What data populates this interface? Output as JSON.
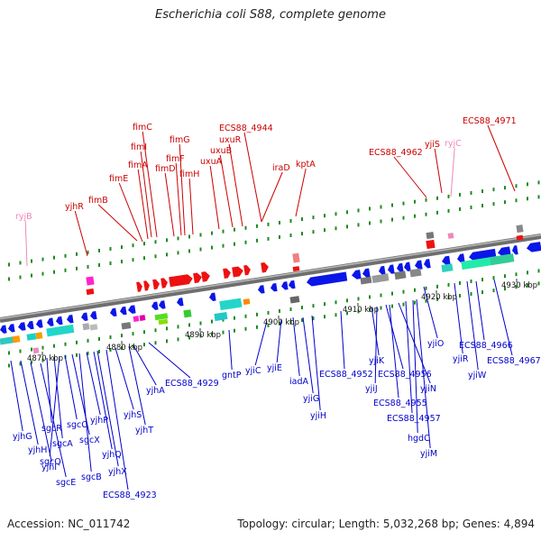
{
  "title": "Escherichia coli S88, complete genome",
  "footer": {
    "accession": "Accession: NC_011742",
    "summary": "Topology: circular; Length: 5,032,268 bp; Genes: 4,894"
  },
  "colors": {
    "forward_label": "#cc0000",
    "reverse_label": "#0000cc",
    "pseudo_label": "#ee88bb",
    "forward_gene": "#ee1111",
    "reverse_gene": "#0b16e8",
    "backbone": "#8c8c8c",
    "tick": "#1f8a1f"
  },
  "scale": {
    "ticks": [
      {
        "label": "4870 kbp"
      },
      {
        "label": "4880 kbp"
      },
      {
        "label": "4890 kbp"
      },
      {
        "label": "4900 kbp"
      },
      {
        "label": "4910 kbp"
      },
      {
        "label": "4920 kbp"
      },
      {
        "label": "4930 kbp"
      }
    ]
  },
  "top_labels": [
    {
      "name": "ryjB",
      "kind": "pseudo"
    },
    {
      "name": "yjhR",
      "kind": "forward"
    },
    {
      "name": "fimB",
      "kind": "forward"
    },
    {
      "name": "fimE",
      "kind": "forward"
    },
    {
      "name": "fimA",
      "kind": "forward"
    },
    {
      "name": "fimI",
      "kind": "forward"
    },
    {
      "name": "fimC",
      "kind": "forward"
    },
    {
      "name": "fimD",
      "kind": "forward"
    },
    {
      "name": "fimF",
      "kind": "forward"
    },
    {
      "name": "fimG",
      "kind": "forward"
    },
    {
      "name": "fimH",
      "kind": "forward"
    },
    {
      "name": "uxuA",
      "kind": "forward"
    },
    {
      "name": "uxuB",
      "kind": "forward"
    },
    {
      "name": "uxuR",
      "kind": "forward"
    },
    {
      "name": "ECS88_4944",
      "kind": "forward"
    },
    {
      "name": "iraD",
      "kind": "forward"
    },
    {
      "name": "kptA",
      "kind": "forward"
    },
    {
      "name": "ECS88_4962",
      "kind": "forward"
    },
    {
      "name": "yjiS",
      "kind": "forward"
    },
    {
      "name": "ryjC",
      "kind": "pseudo"
    },
    {
      "name": "ECS88_4971",
      "kind": "forward"
    }
  ],
  "bottom_labels": [
    {
      "name": "yjhG"
    },
    {
      "name": "yjhH"
    },
    {
      "name": "yjhI"
    },
    {
      "name": "sgcE"
    },
    {
      "name": "sgcR"
    },
    {
      "name": "sgcA"
    },
    {
      "name": "sgcQ"
    },
    {
      "name": "sgcC"
    },
    {
      "name": "sgcX"
    },
    {
      "name": "sgcB"
    },
    {
      "name": "yjhP"
    },
    {
      "name": "yjhQ"
    },
    {
      "name": "yjhX"
    },
    {
      "name": "ECS88_4923"
    },
    {
      "name": "yjhS"
    },
    {
      "name": "yjhT"
    },
    {
      "name": "yjhA"
    },
    {
      "name": "ECS88_4929"
    },
    {
      "name": "gntP"
    },
    {
      "name": "yjiC"
    },
    {
      "name": "yjiE"
    },
    {
      "name": "iadA"
    },
    {
      "name": "yjiG"
    },
    {
      "name": "yjiH"
    },
    {
      "name": "ECS88_4952"
    },
    {
      "name": "yjiK"
    },
    {
      "name": "yjiJ"
    },
    {
      "name": "ECS88_4956"
    },
    {
      "name": "ECS88_4955"
    },
    {
      "name": "yjiN"
    },
    {
      "name": "ECS88_4957"
    },
    {
      "name": "hgdC"
    },
    {
      "name": "yjiM"
    },
    {
      "name": "yjiO"
    },
    {
      "name": "ECS88_4966"
    },
    {
      "name": "yjiR"
    },
    {
      "name": "yjiW"
    },
    {
      "name": "ECS88_4967"
    }
  ]
}
